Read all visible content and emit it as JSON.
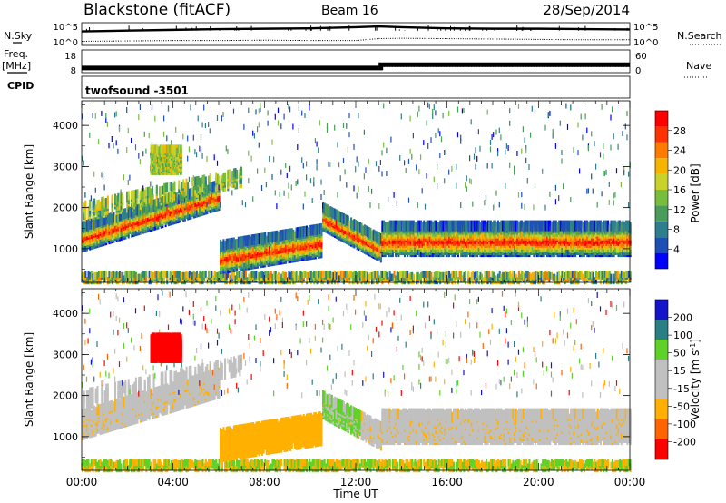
{
  "header": {
    "station": "Blackstone (fitACF)",
    "beam": "Beam 16",
    "date": "28/Sep/2014"
  },
  "left_labels": {
    "nsky": "N.Sky",
    "freq_line1": "Freq.",
    "freq_line2": "[MHz]",
    "cpid": "CPID"
  },
  "right_labels": {
    "nsearch": "N.Search",
    "nave": "Nave"
  },
  "colors": {
    "power": [
      "#0000ff",
      "#1d4fb6",
      "#2e7f8d",
      "#4a9c5a",
      "#78be3c",
      "#c8d22a",
      "#f6b400",
      "#ff7a00",
      "#ff3300",
      "#ff0000"
    ],
    "velocity": [
      "#ff0000",
      "#ff6400",
      "#ffb000",
      "#c0c0c0",
      "#c0c0c0",
      "#5fd22a",
      "#2a7f84",
      "#1414c8"
    ]
  },
  "chart_data": [
    {
      "name": "noise",
      "type": "line",
      "ylabel": "",
      "yticks_left": [
        "10^5",
        "10^0"
      ],
      "yticks_right": [
        "10^5",
        "10^0"
      ],
      "x_hours": [
        0,
        2,
        4,
        6,
        8,
        10,
        12,
        13,
        14,
        16,
        18,
        20,
        22,
        24
      ],
      "series": [
        {
          "values_log10": [
            3.2,
            3.4,
            3.6,
            3.8,
            3.9,
            4.0,
            4.3,
            4.5,
            4.3,
            4.0,
            3.9,
            3.9,
            3.8,
            3.7
          ]
        },
        {
          "values_log10": [
            0.6,
            0.7,
            0.8,
            0.8,
            0.9,
            0.8,
            0.8,
            1.3,
            1.4,
            1.3,
            1.2,
            1.1,
            1.0,
            1.0
          ]
        }
      ]
    },
    {
      "name": "frequency-nave",
      "type": "line",
      "yticks_left": [
        "18",
        "8"
      ],
      "yticks_right": [
        "60",
        "0"
      ],
      "x_hours": [
        0,
        13.1,
        13.1,
        24
      ],
      "series": [
        {
          "values": [
            9.5,
            9.5,
            11.2,
            11.2
          ]
        },
        {
          "values": [
            14,
            14,
            14,
            14
          ]
        }
      ]
    },
    {
      "name": "cpid",
      "type": "table",
      "cpid_label": "twofsound -3501"
    },
    {
      "name": "power",
      "type": "heatmap",
      "ylabel": "Slant Range [km]",
      "yticks": [
        "1000",
        "2000",
        "3000",
        "4000"
      ],
      "ylim": [
        180,
        4600
      ],
      "xlim_hours": [
        0,
        24
      ],
      "colorbar_label": "Power [dB]",
      "colorbar_ticks": [
        "4",
        "8",
        "12",
        "16",
        "20",
        "24",
        "28"
      ],
      "levels": [
        0,
        4,
        8,
        12,
        16,
        20,
        24,
        28,
        32
      ]
    },
    {
      "name": "velocity",
      "type": "heatmap",
      "ylabel": "Slant Range [km]",
      "yticks": [
        "1000",
        "2000",
        "3000",
        "4000"
      ],
      "ylim": [
        180,
        4600
      ],
      "xlim_hours": [
        0,
        24
      ],
      "colorbar_label": "Velocity [m s",
      "colorbar_label_sup": "-1",
      "colorbar_label_end": "]",
      "colorbar_ticks": [
        "-200",
        "-100",
        "-50",
        "-15",
        "15",
        "50",
        "100",
        "200"
      ]
    }
  ],
  "xaxis": {
    "ticks": [
      "00:00",
      "04:00",
      "08:00",
      "12:00",
      "16:00",
      "20:00",
      "00:00"
    ],
    "label": "Time UT"
  }
}
